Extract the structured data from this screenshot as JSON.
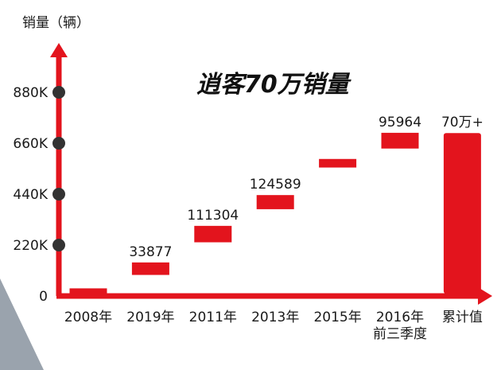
{
  "chart_data": {
    "type": "bar",
    "subtype": "waterfall",
    "title": "逍客70万销量",
    "ylabel": "销量（辆）",
    "xlabel": "",
    "ylim": [
      0,
      1100000
    ],
    "yticks": [
      {
        "value": 0,
        "label": "0"
      },
      {
        "value": 220000,
        "label": "220K"
      },
      {
        "value": 440000,
        "label": "440K"
      },
      {
        "value": 660000,
        "label": "660K"
      },
      {
        "value": 880000,
        "label": "880K"
      }
    ],
    "categories": [
      "2008年",
      "2019年",
      "2011年",
      "2013年",
      "2015年",
      "2016年",
      "累计值"
    ],
    "category_sublabels": [
      "",
      "",
      "",
      "",
      "",
      "前三季度",
      ""
    ],
    "bars": [
      {
        "category": "2008年",
        "start": 0,
        "end": 33000,
        "label": ""
      },
      {
        "category": "2019年",
        "start": 91000,
        "end": 145000,
        "label": "33877"
      },
      {
        "category": "2011年",
        "start": 232000,
        "end": 303000,
        "label": "111304"
      },
      {
        "category": "2013年",
        "start": 375000,
        "end": 436000,
        "label": "124589"
      },
      {
        "category": "2015年",
        "start": 555000,
        "end": 592000,
        "label": ""
      },
      {
        "category": "2016年",
        "start": 637000,
        "end": 705000,
        "label": "95964"
      },
      {
        "category": "累计值",
        "start": 0,
        "end": 704000,
        "label": "70万+"
      }
    ],
    "grid": false,
    "legend": "none",
    "colors": {
      "bar": "#e3141d",
      "axis": "#e3141d",
      "tick_dot": "#333333",
      "corner_shape": "#9aa3ad"
    }
  }
}
